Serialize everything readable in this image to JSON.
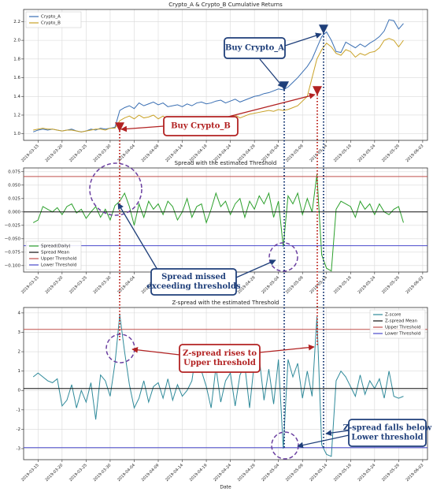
{
  "chart_data": {
    "type": "line",
    "x": [
      "2019-03-14",
      "2019-03-15",
      "2019-03-16",
      "2019-03-17",
      "2019-03-18",
      "2019-03-19",
      "2019-03-20",
      "2019-03-21",
      "2019-03-22",
      "2019-03-23",
      "2019-03-24",
      "2019-03-25",
      "2019-03-26",
      "2019-03-27",
      "2019-03-28",
      "2019-03-29",
      "2019-03-30",
      "2019-03-31",
      "2019-04-01",
      "2019-04-02",
      "2019-04-03",
      "2019-04-04",
      "2019-04-05",
      "2019-04-06",
      "2019-04-07",
      "2019-04-08",
      "2019-04-09",
      "2019-04-10",
      "2019-04-11",
      "2019-04-12",
      "2019-04-13",
      "2019-04-14",
      "2019-04-15",
      "2019-04-16",
      "2019-04-17",
      "2019-04-18",
      "2019-04-19",
      "2019-04-20",
      "2019-04-21",
      "2019-04-22",
      "2019-04-23",
      "2019-04-24",
      "2019-04-25",
      "2019-04-26",
      "2019-04-27",
      "2019-04-28",
      "2019-04-29",
      "2019-04-30",
      "2019-05-01",
      "2019-05-02",
      "2019-05-03",
      "2019-05-04",
      "2019-05-05",
      "2019-05-06",
      "2019-05-07",
      "2019-05-08",
      "2019-05-09",
      "2019-05-10",
      "2019-05-11",
      "2019-05-12",
      "2019-05-13",
      "2019-05-14",
      "2019-05-15",
      "2019-05-16",
      "2019-05-17",
      "2019-05-18",
      "2019-05-19",
      "2019-05-20",
      "2019-05-21",
      "2019-05-22",
      "2019-05-23",
      "2019-05-24",
      "2019-05-25",
      "2019-05-26",
      "2019-05-27",
      "2019-05-28",
      "2019-05-29",
      "2019-05-30"
    ],
    "xlim": [
      "2019-03-12",
      "2019-06-04"
    ],
    "xticks": [
      "2019-03-15",
      "2019-03-20",
      "2019-03-25",
      "2019-03-30",
      "2019-04-04",
      "2019-04-09",
      "2019-04-14",
      "2019-04-19",
      "2019-04-24",
      "2019-04-29",
      "2019-05-04",
      "2019-05-09",
      "2019-05-14",
      "2019-05-19",
      "2019-05-24",
      "2019-05-29",
      "2019-06-03"
    ],
    "xlabel": "Date",
    "grid": true,
    "panels": [
      {
        "title": "Crypto_A & Crypto_B Cumulative Returns",
        "ylim": [
          0.93,
          2.33
        ],
        "legend": "upper left",
        "yticks": [
          {
            "value": 1,
            "label": "1.0"
          },
          1.2,
          1.4,
          1.6,
          1.8,
          {
            "value": 2,
            "label": "2.0"
          },
          2.2
        ],
        "series": [
          {
            "name": "Crypto_A",
            "color": "#3a6fb3",
            "values": [
              1.02,
              1.04,
              1.05,
              1.04,
              1.05,
              1.04,
              1.03,
              1.04,
              1.05,
              1.03,
              1.02,
              1.03,
              1.05,
              1.04,
              1.06,
              1.05,
              1.06,
              1.07,
              1.25,
              1.28,
              1.3,
              1.27,
              1.33,
              1.3,
              1.32,
              1.34,
              1.31,
              1.33,
              1.29,
              1.3,
              1.31,
              1.29,
              1.32,
              1.3,
              1.33,
              1.34,
              1.32,
              1.33,
              1.35,
              1.36,
              1.33,
              1.35,
              1.37,
              1.34,
              1.36,
              1.38,
              1.4,
              1.41,
              1.43,
              1.44,
              1.46,
              1.48,
              1.47,
              1.5,
              1.55,
              1.6,
              1.66,
              1.72,
              1.8,
              1.92,
              2.04,
              2.09,
              2.0,
              1.88,
              1.87,
              1.98,
              1.95,
              1.92,
              1.96,
              1.93,
              1.97,
              2.0,
              2.04,
              2.1,
              2.22,
              2.21,
              2.12,
              2.18
            ]
          },
          {
            "name": "Crypto_B",
            "color": "#c9a227",
            "values": [
              1.04,
              1.05,
              1.06,
              1.05,
              1.05,
              1.04,
              1.03,
              1.04,
              1.04,
              1.03,
              1.02,
              1.03,
              1.04,
              1.05,
              1.05,
              1.04,
              1.06,
              1.06,
              1.14,
              1.17,
              1.19,
              1.16,
              1.2,
              1.17,
              1.18,
              1.2,
              1.16,
              1.19,
              1.15,
              1.16,
              1.14,
              1.17,
              1.18,
              1.12,
              1.13,
              1.15,
              1.1,
              1.14,
              1.16,
              1.15,
              1.16,
              1.18,
              1.2,
              1.17,
              1.19,
              1.21,
              1.22,
              1.23,
              1.24,
              1.25,
              1.24,
              1.26,
              1.25,
              1.26,
              1.28,
              1.3,
              1.35,
              1.4,
              1.6,
              1.8,
              1.9,
              1.97,
              1.93,
              1.86,
              1.84,
              1.9,
              1.88,
              1.82,
              1.86,
              1.84,
              1.87,
              1.88,
              1.92,
              2.0,
              2.02,
              2.0,
              1.93,
              2.0
            ]
          }
        ],
        "lines": []
      },
      {
        "title": "Spread with the estimated Threshold",
        "ylim": [
          -0.112,
          0.082
        ],
        "legend": "lower left",
        "yticks": [
          0.075,
          {
            "value": 0.05,
            "label": "0.050"
          },
          0.025,
          {
            "value": 0,
            "label": "0.000"
          },
          {
            "value": -0.025,
            "label": "−0.025"
          },
          {
            "value": -0.05,
            "label": "−0.050"
          },
          {
            "value": -0.075,
            "label": "−0.075"
          },
          {
            "value": -0.1,
            "label": "−0.100"
          }
        ],
        "series": [
          {
            "name": "Spread(Daily)",
            "color": "#2ca02c",
            "values": [
              -0.02,
              -0.015,
              0.01,
              0.005,
              0.0,
              0.008,
              -0.005,
              0.01,
              0.015,
              -0.002,
              0.005,
              -0.012,
              0.0,
              0.01,
              -0.01,
              0.005,
              -0.015,
              0.012,
              0.02,
              0.035,
              0.01,
              -0.025,
              0.015,
              -0.01,
              0.02,
              0.005,
              0.015,
              -0.005,
              0.02,
              0.01,
              -0.015,
              0.0,
              0.025,
              -0.01,
              0.01,
              0.015,
              -0.02,
              0.005,
              0.035,
              0.01,
              0.02,
              -0.005,
              0.015,
              0.025,
              -0.01,
              0.02,
              0.005,
              0.03,
              0.015,
              0.035,
              -0.01,
              0.02,
              -0.065,
              0.03,
              0.015,
              0.035,
              -0.005,
              0.025,
              0.0,
              0.07,
              -0.08,
              -0.105,
              -0.11,
              0.005,
              0.02,
              0.015,
              0.01,
              -0.01,
              0.02,
              0.005,
              0.015,
              -0.005,
              0.015,
              0.0,
              -0.005,
              0.005,
              0.01,
              -0.02
            ]
          }
        ],
        "lines": [
          {
            "name": "Spread Mean",
            "color": "#111111",
            "value": 0
          },
          {
            "name": "Upper Threshold",
            "color": "#c0504d",
            "value": 0.066
          },
          {
            "name": "Lower Threshold",
            "color": "#4a4acc",
            "value": -0.063
          }
        ]
      },
      {
        "title": "Z-spread with the estimated Threshold",
        "ylim": [
          -3.57,
          4.28
        ],
        "legend": "upper right",
        "yticks": [
          -3,
          -2,
          -1,
          0,
          1,
          2,
          3,
          4
        ],
        "series": [
          {
            "name": "Z-score",
            "color": "#2f8a9a",
            "values": [
              0.7,
              0.9,
              0.7,
              0.5,
              0.4,
              0.6,
              -0.8,
              -0.5,
              0.3,
              -0.9,
              0.0,
              -0.6,
              0.4,
              -1.5,
              0.8,
              0.5,
              -0.3,
              1.4,
              3.9,
              2.0,
              0.3,
              -0.9,
              -0.4,
              0.5,
              -0.6,
              0.2,
              0.4,
              -0.4,
              0.6,
              -0.5,
              0.3,
              -0.3,
              0.0,
              0.5,
              2.2,
              1.0,
              0.2,
              -0.9,
              1.2,
              -0.6,
              0.5,
              0.9,
              -0.8,
              0.8,
              1.3,
              -0.9,
              1.5,
              1.7,
              -0.5,
              1.1,
              -0.7,
              1.6,
              -3.0,
              1.6,
              0.7,
              1.4,
              -0.4,
              1.0,
              -0.3,
              3.8,
              -2.8,
              -3.3,
              -3.4,
              0.5,
              1.0,
              0.7,
              0.2,
              -0.3,
              0.8,
              -0.2,
              0.5,
              0.1,
              0.6,
              -0.4,
              1.0,
              -0.3,
              -0.4,
              -0.3
            ]
          }
        ],
        "lines": [
          {
            "name": "Z-spread Mean",
            "color": "#111111",
            "value": 0.1
          },
          {
            "name": "Upper Threshold",
            "color": "#c0504d",
            "value": 3.15
          },
          {
            "name": "Lower Threshold",
            "color": "#4a4acc",
            "value": -2.95
          }
        ]
      }
    ],
    "annotations": [
      {
        "text": [
          "Buy Crypto_A"
        ],
        "color": "#1f3f7a"
      },
      {
        "text": [
          "Buy Crypto_B"
        ],
        "color": "#b22222"
      },
      {
        "text": [
          "Spread missed",
          "exceeding thresholds"
        ],
        "color": "#1f3f7a"
      },
      {
        "text": [
          "Z-spread rises to",
          "Upper threshold"
        ],
        "color": "#b22222"
      },
      {
        "text": [
          "Z-spread falls below",
          "Lower threshold"
        ],
        "color": "#1f3f7a"
      }
    ]
  }
}
